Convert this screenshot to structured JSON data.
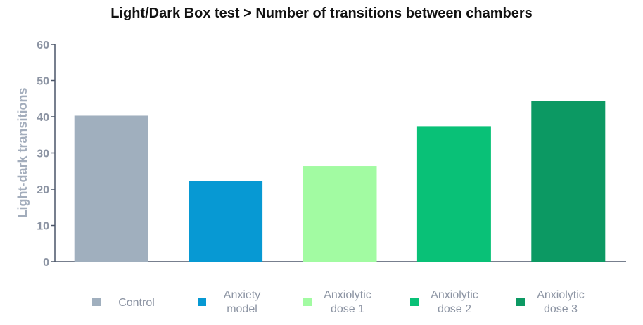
{
  "chart_data": {
    "type": "bar",
    "title": "Light/Dark Box test > Number of transitions between chambers",
    "xlabel": "",
    "ylabel": "Light-dark transitions",
    "ylim": [
      0,
      60
    ],
    "yticks": [
      0,
      10,
      20,
      30,
      40,
      50,
      60
    ],
    "grid": false,
    "legend_position": "bottom",
    "categories": [
      "Control",
      "Anxiety model",
      "Anxiolytic dose 1",
      "Anxiolytic dose 2",
      "Anxiolytic dose 3"
    ],
    "legend_labels": [
      [
        "Control"
      ],
      [
        "Anxiety",
        "model"
      ],
      [
        "Anxiolytic",
        "dose 1"
      ],
      [
        "Anxiolytic",
        "dose 2"
      ],
      [
        "Anxiolytic",
        "dose 3"
      ]
    ],
    "values": [
      40.3,
      22.3,
      26.4,
      37.4,
      44.3
    ],
    "colors": [
      "#a0afbe",
      "#0799d3",
      "#a2fba2",
      "#09c177",
      "#0c9963"
    ]
  }
}
